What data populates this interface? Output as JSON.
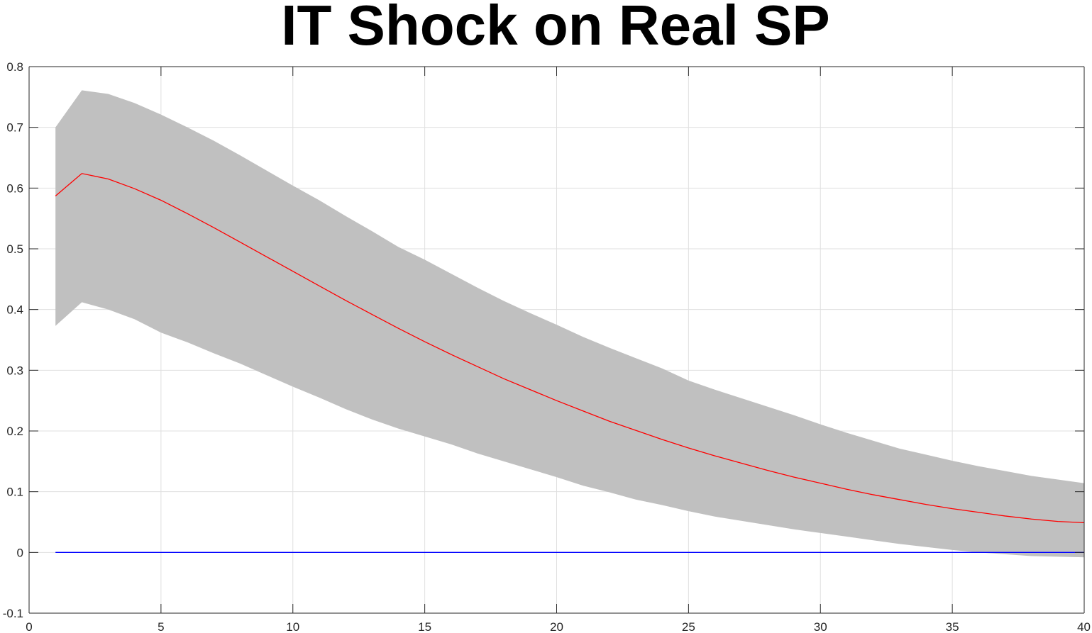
{
  "chart_data": {
    "type": "line",
    "title": "IT Shock on Real SP",
    "xlabel": "",
    "ylabel": "",
    "xlim": [
      0,
      40
    ],
    "ylim": [
      -0.1,
      0.8
    ],
    "xticks": [
      0,
      5,
      10,
      15,
      20,
      25,
      30,
      35,
      40
    ],
    "yticks": [
      -0.1,
      0,
      0.1,
      0.2,
      0.3,
      0.4,
      0.5,
      0.6,
      0.7,
      0.8
    ],
    "ytick_labels": [
      "-0.1",
      "0",
      "0.1",
      "0.2",
      "0.3",
      "0.4",
      "0.5",
      "0.6",
      "0.7",
      "0.8"
    ],
    "grid": true,
    "band": {
      "color": "#c0c0c0",
      "x": [
        1,
        2,
        3,
        4,
        5,
        6,
        7,
        8,
        9,
        10,
        11,
        12,
        13,
        14,
        15,
        16,
        17,
        18,
        19,
        20,
        21,
        22,
        23,
        24,
        25,
        26,
        27,
        28,
        29,
        30,
        31,
        32,
        33,
        34,
        35,
        36,
        37,
        38,
        39,
        40
      ],
      "upper": [
        0.7,
        0.761,
        0.755,
        0.74,
        0.721,
        0.7,
        0.678,
        0.654,
        0.629,
        0.604,
        0.58,
        0.554,
        0.529,
        0.503,
        0.482,
        0.459,
        0.436,
        0.414,
        0.394,
        0.375,
        0.355,
        0.337,
        0.32,
        0.303,
        0.283,
        0.268,
        0.254,
        0.24,
        0.226,
        0.211,
        0.197,
        0.184,
        0.171,
        0.161,
        0.151,
        0.142,
        0.134,
        0.126,
        0.12,
        0.114
      ],
      "lower": [
        0.373,
        0.412,
        0.4,
        0.384,
        0.362,
        0.346,
        0.328,
        0.311,
        0.292,
        0.273,
        0.255,
        0.236,
        0.219,
        0.204,
        0.191,
        0.178,
        0.163,
        0.15,
        0.137,
        0.124,
        0.11,
        0.099,
        0.087,
        0.078,
        0.068,
        0.059,
        0.052,
        0.045,
        0.038,
        0.032,
        0.026,
        0.02,
        0.014,
        0.009,
        0.004,
        0.0,
        -0.003,
        -0.006,
        -0.007,
        -0.008
      ]
    },
    "series": [
      {
        "color": "#ff0000",
        "x": [
          1,
          2,
          3,
          4,
          5,
          6,
          7,
          8,
          9,
          10,
          11,
          12,
          13,
          14,
          15,
          16,
          17,
          18,
          19,
          20,
          21,
          22,
          23,
          24,
          25,
          26,
          27,
          28,
          29,
          30,
          31,
          32,
          33,
          34,
          35,
          36,
          37,
          38,
          39,
          40
        ],
        "values": [
          0.587,
          0.624,
          0.615,
          0.599,
          0.58,
          0.558,
          0.535,
          0.511,
          0.487,
          0.463,
          0.439,
          0.415,
          0.392,
          0.369,
          0.347,
          0.326,
          0.306,
          0.286,
          0.268,
          0.25,
          0.233,
          0.216,
          0.201,
          0.186,
          0.172,
          0.159,
          0.147,
          0.135,
          0.124,
          0.114,
          0.104,
          0.095,
          0.087,
          0.079,
          0.072,
          0.066,
          0.06,
          0.055,
          0.051,
          0.049
        ]
      },
      {
        "color": "#0000ff",
        "x": [
          1,
          40
        ],
        "values": [
          0,
          0
        ]
      }
    ]
  }
}
